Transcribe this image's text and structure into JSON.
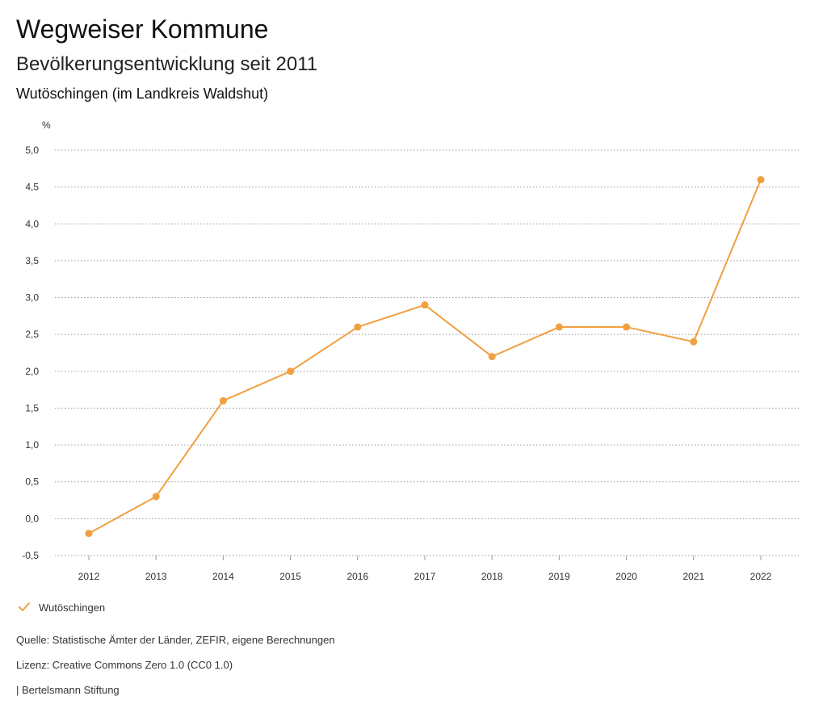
{
  "header": {
    "title": "Wegweiser Kommune",
    "subtitle": "Bevölkerungsentwicklung seit 2011",
    "region": "Wutöschingen (im Landkreis Waldshut)"
  },
  "chart_data": {
    "type": "line",
    "title": "Bevölkerungsentwicklung seit 2011",
    "xlabel": "",
    "ylabel": "%",
    "categories": [
      "2012",
      "2013",
      "2014",
      "2015",
      "2016",
      "2017",
      "2018",
      "2019",
      "2020",
      "2021",
      "2022"
    ],
    "series": [
      {
        "name": "Wutöschingen",
        "color": "#F0A040",
        "values": [
          -0.2,
          0.3,
          1.6,
          2.0,
          2.6,
          2.9,
          2.2,
          2.6,
          2.6,
          2.4,
          4.6
        ]
      }
    ],
    "ylim": [
      -0.5,
      5.0
    ],
    "yticks": [
      -0.5,
      0.0,
      0.5,
      1.0,
      1.5,
      2.0,
      2.5,
      3.0,
      3.5,
      4.0,
      4.5,
      5.0
    ],
    "ytick_labels": [
      "-0,5",
      "0,0",
      "0,5",
      "1,0",
      "1,5",
      "2,0",
      "2,5",
      "3,0",
      "3,5",
      "4,0",
      "4,5",
      "5,0"
    ],
    "grid": true,
    "legend": "bottom-left"
  },
  "legend": {
    "items": [
      {
        "label": "Wutöschingen",
        "icon": "check-icon"
      }
    ]
  },
  "footer": {
    "source": "Quelle: Statistische Ämter der Länder, ZEFIR, eigene Berechnungen",
    "license": "Lizenz: Creative Commons Zero 1.0 (CC0 1.0)",
    "brand": "| Bertelsmann Stiftung"
  }
}
